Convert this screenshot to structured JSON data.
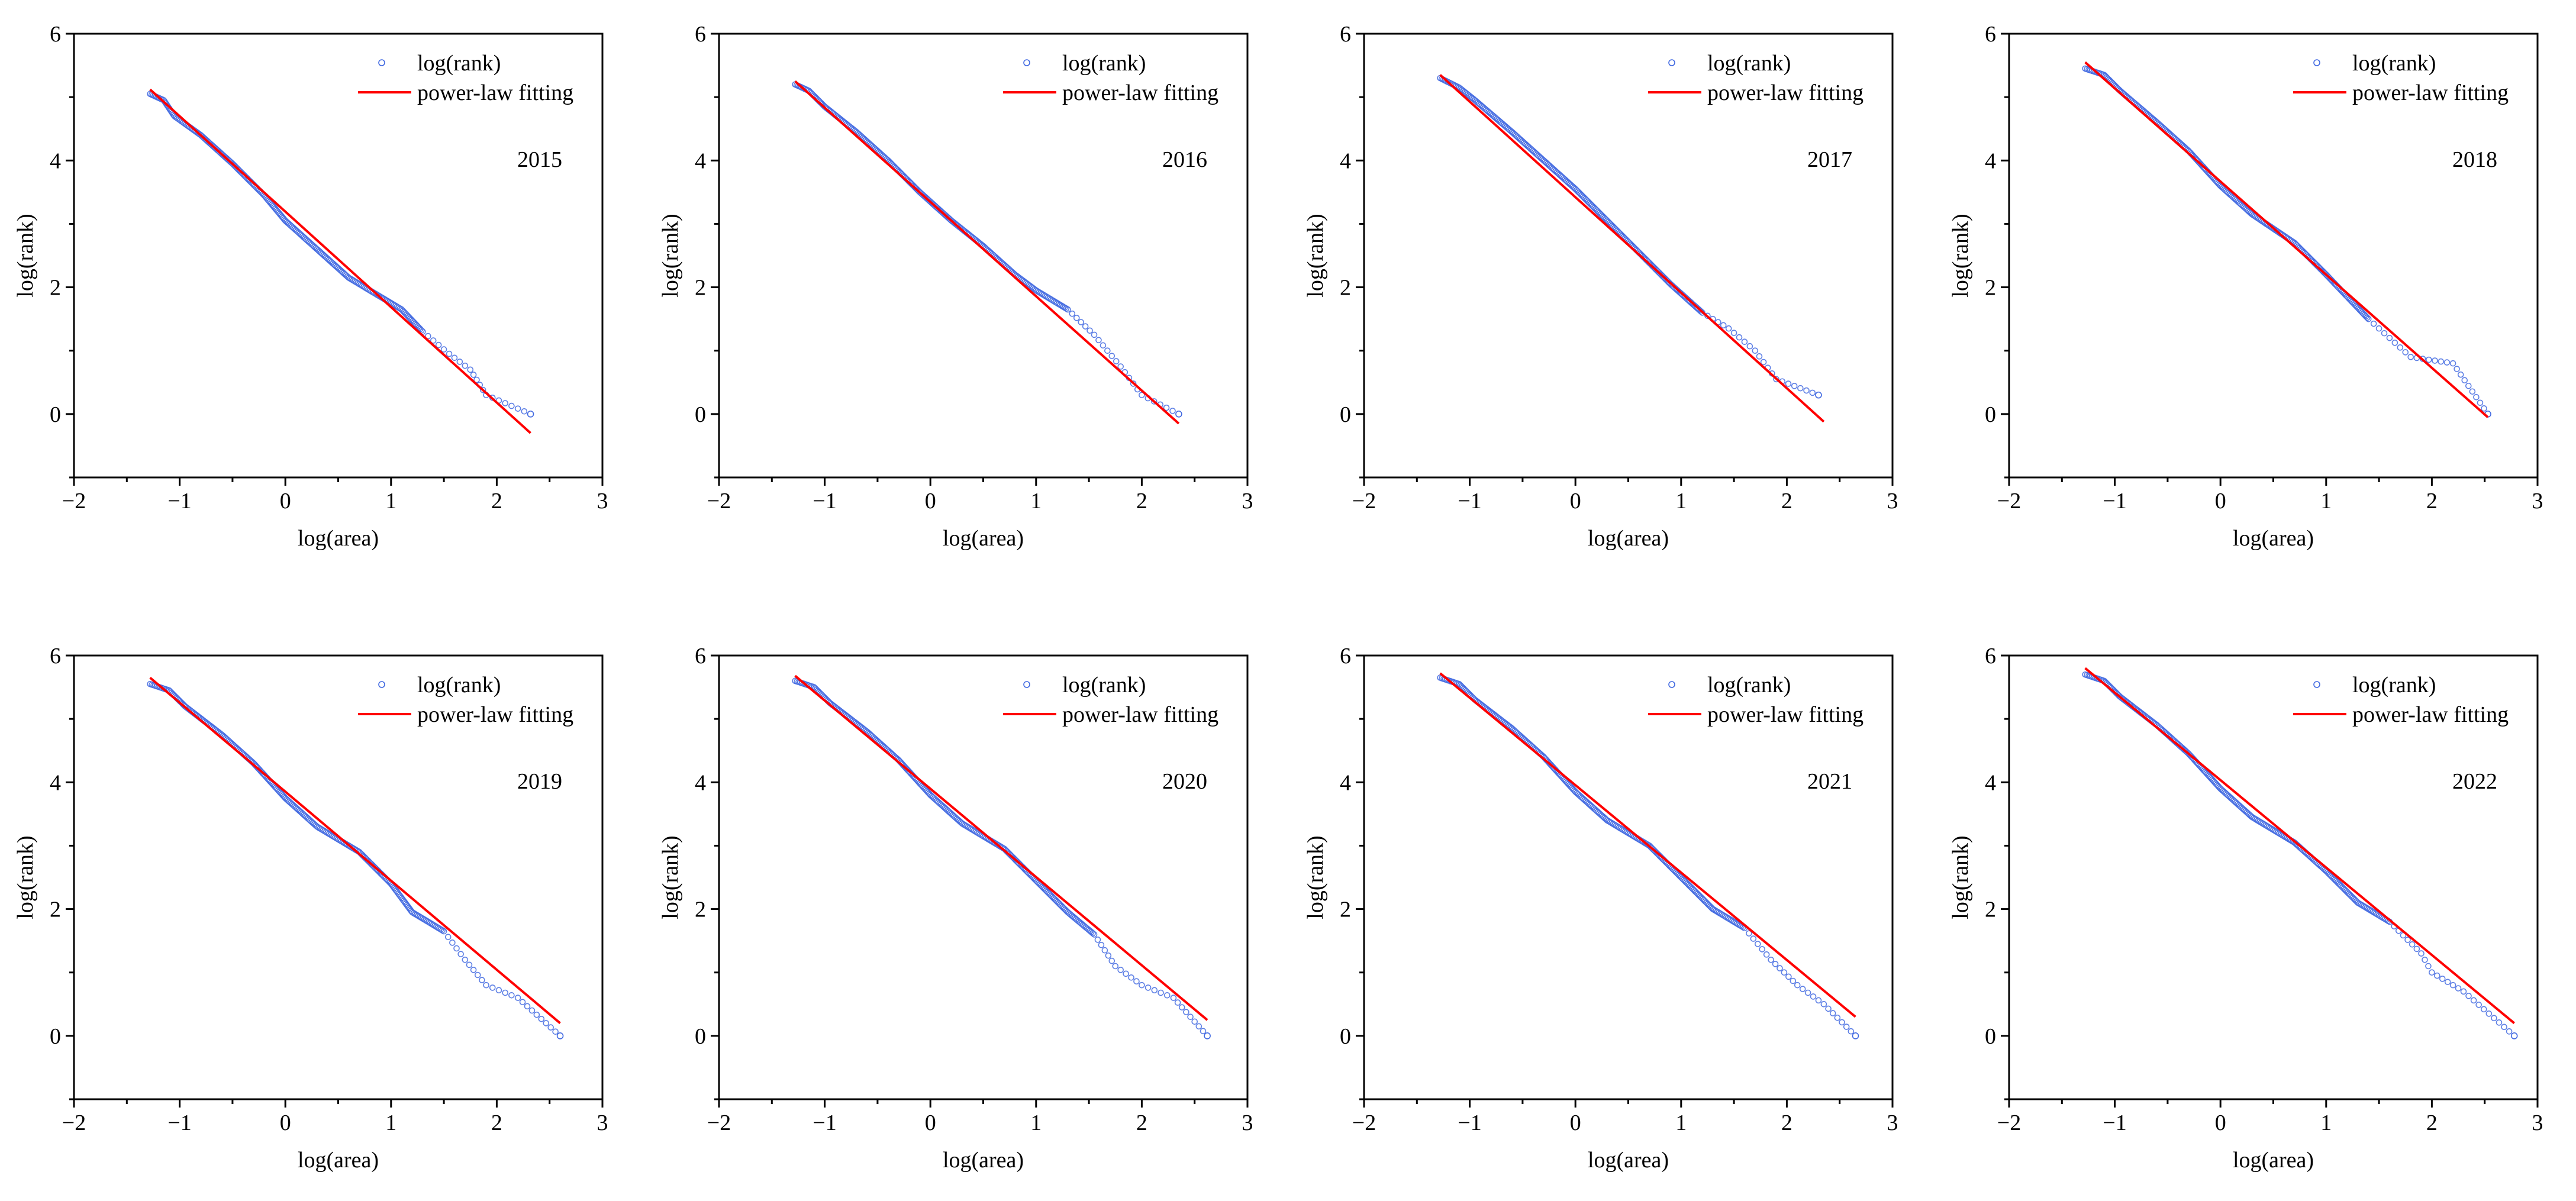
{
  "colors": {
    "data": "#4169E1",
    "fit": "#FF0000",
    "axis": "#000000"
  },
  "chart_data": [
    {
      "type": "scatter",
      "year_label": "2015",
      "xlabel": "log(area)",
      "ylabel": "log(rank)",
      "xlim": [
        -2,
        3
      ],
      "ylim": [
        -1,
        6
      ],
      "xticks": [
        "-2",
        "-1",
        "0",
        "1",
        "2",
        "3"
      ],
      "yticks": [
        "0",
        "2",
        "4",
        "6"
      ],
      "legend": {
        "placement": "top-right",
        "entries": [
          "log(rank)",
          "power-law fitting"
        ]
      },
      "series": [
        {
          "name": "log(rank)",
          "style": "hollow-circle",
          "points": [
            [
              -1.28,
              5.05
            ],
            [
              -1.15,
              4.95
            ],
            [
              -1.05,
              4.7
            ],
            [
              -0.8,
              4.4
            ],
            [
              -0.5,
              3.95
            ],
            [
              -0.2,
              3.45
            ],
            [
              0,
              3.05
            ],
            [
              0.3,
              2.6
            ],
            [
              0.6,
              2.15
            ],
            [
              0.9,
              1.85
            ],
            [
              1.1,
              1.65
            ],
            [
              1.3,
              1.3
            ],
            [
              1.55,
              0.95
            ],
            [
              1.75,
              0.7
            ],
            [
              1.9,
              0.3
            ],
            [
              2.32,
              0.0
            ]
          ]
        },
        {
          "name": "power-law fitting",
          "style": "line",
          "points": [
            [
              -1.28,
              5.12
            ],
            [
              2.32,
              -0.3
            ]
          ]
        }
      ]
    },
    {
      "type": "scatter",
      "year_label": "2016",
      "xlabel": "log(area)",
      "ylabel": "log(rank)",
      "xlim": [
        -2,
        3
      ],
      "ylim": [
        -1,
        6
      ],
      "xticks": [
        "-2",
        "-1",
        "0",
        "1",
        "2",
        "3"
      ],
      "yticks": [
        "0",
        "2",
        "4",
        "6"
      ],
      "legend": {
        "placement": "top-right",
        "entries": [
          "log(rank)",
          "power-law fitting"
        ]
      },
      "series": [
        {
          "name": "log(rank)",
          "style": "hollow-circle",
          "points": [
            [
              -1.28,
              5.2
            ],
            [
              -1.15,
              5.1
            ],
            [
              -1.0,
              4.85
            ],
            [
              -0.7,
              4.45
            ],
            [
              -0.4,
              4.0
            ],
            [
              -0.1,
              3.5
            ],
            [
              0.2,
              3.05
            ],
            [
              0.5,
              2.65
            ],
            [
              0.8,
              2.2
            ],
            [
              1.0,
              1.95
            ],
            [
              1.3,
              1.65
            ],
            [
              1.55,
              1.25
            ],
            [
              1.8,
              0.75
            ],
            [
              2.0,
              0.3
            ],
            [
              2.35,
              0.0
            ]
          ]
        },
        {
          "name": "power-law fitting",
          "style": "line",
          "points": [
            [
              -1.28,
              5.25
            ],
            [
              2.35,
              -0.15
            ]
          ]
        }
      ]
    },
    {
      "type": "scatter",
      "year_label": "2017",
      "xlabel": "log(area)",
      "ylabel": "log(rank)",
      "xlim": [
        -2,
        3
      ],
      "ylim": [
        -1,
        6
      ],
      "xticks": [
        "-2",
        "-1",
        "0",
        "1",
        "2",
        "3"
      ],
      "yticks": [
        "0",
        "2",
        "4",
        "6"
      ],
      "legend": {
        "placement": "top-right",
        "entries": [
          "log(rank)",
          "power-law fitting"
        ]
      },
      "series": [
        {
          "name": "log(rank)",
          "style": "hollow-circle",
          "points": [
            [
              -1.28,
              5.3
            ],
            [
              -1.1,
              5.15
            ],
            [
              -0.95,
              4.95
            ],
            [
              -0.6,
              4.45
            ],
            [
              -0.3,
              4.0
            ],
            [
              0,
              3.55
            ],
            [
              0.3,
              3.05
            ],
            [
              0.6,
              2.55
            ],
            [
              0.9,
              2.05
            ],
            [
              1.2,
              1.6
            ],
            [
              1.45,
              1.35
            ],
            [
              1.7,
              1.0
            ],
            [
              1.9,
              0.55
            ],
            [
              2.3,
              0.3
            ]
          ]
        },
        {
          "name": "power-law fitting",
          "style": "line",
          "points": [
            [
              -1.28,
              5.35
            ],
            [
              2.35,
              -0.12
            ]
          ]
        }
      ]
    },
    {
      "type": "scatter",
      "year_label": "2018",
      "xlabel": "log(area)",
      "ylabel": "log(rank)",
      "xlim": [
        -2,
        3
      ],
      "ylim": [
        -1,
        6
      ],
      "xticks": [
        "-2",
        "-1",
        "0",
        "1",
        "2",
        "3"
      ],
      "yticks": [
        "0",
        "2",
        "4",
        "6"
      ],
      "legend": {
        "placement": "top-right",
        "entries": [
          "log(rank)",
          "power-law fitting"
        ]
      },
      "series": [
        {
          "name": "log(rank)",
          "style": "hollow-circle",
          "points": [
            [
              -1.28,
              5.45
            ],
            [
              -1.1,
              5.35
            ],
            [
              -0.95,
              5.1
            ],
            [
              -0.6,
              4.6
            ],
            [
              -0.3,
              4.15
            ],
            [
              0,
              3.6
            ],
            [
              0.3,
              3.15
            ],
            [
              0.7,
              2.7
            ],
            [
              1.0,
              2.2
            ],
            [
              1.2,
              1.85
            ],
            [
              1.4,
              1.5
            ],
            [
              1.6,
              1.2
            ],
            [
              1.8,
              0.9
            ],
            [
              2.2,
              0.8
            ],
            [
              2.53,
              0.0
            ]
          ]
        },
        {
          "name": "power-law fitting",
          "style": "line",
          "points": [
            [
              -1.28,
              5.55
            ],
            [
              2.53,
              -0.05
            ]
          ]
        }
      ]
    },
    {
      "type": "scatter",
      "year_label": "2019",
      "xlabel": "log(area)",
      "ylabel": "log(rank)",
      "xlim": [
        -2,
        3
      ],
      "ylim": [
        -1,
        6
      ],
      "xticks": [
        "-2",
        "-1",
        "0",
        "1",
        "2",
        "3"
      ],
      "yticks": [
        "0",
        "2",
        "4",
        "6"
      ],
      "legend": {
        "placement": "top-right",
        "entries": [
          "log(rank)",
          "power-law fitting"
        ]
      },
      "series": [
        {
          "name": "log(rank)",
          "style": "hollow-circle",
          "points": [
            [
              -1.28,
              5.55
            ],
            [
              -1.1,
              5.45
            ],
            [
              -0.95,
              5.2
            ],
            [
              -0.6,
              4.75
            ],
            [
              -0.3,
              4.3
            ],
            [
              0,
              3.75
            ],
            [
              0.3,
              3.3
            ],
            [
              0.7,
              2.9
            ],
            [
              1.0,
              2.4
            ],
            [
              1.2,
              1.95
            ],
            [
              1.5,
              1.65
            ],
            [
              1.7,
              1.2
            ],
            [
              1.9,
              0.8
            ],
            [
              2.2,
              0.6
            ],
            [
              2.6,
              0.0
            ]
          ]
        },
        {
          "name": "power-law fitting",
          "style": "line",
          "points": [
            [
              -1.28,
              5.65
            ],
            [
              2.6,
              0.2
            ]
          ]
        }
      ]
    },
    {
      "type": "scatter",
      "year_label": "2020",
      "xlabel": "log(area)",
      "ylabel": "log(rank)",
      "xlim": [
        -2,
        3
      ],
      "ylim": [
        -1,
        6
      ],
      "xticks": [
        "-2",
        "-1",
        "0",
        "1",
        "2",
        "3"
      ],
      "yticks": [
        "0",
        "2",
        "4",
        "6"
      ],
      "legend": {
        "placement": "top-right",
        "entries": [
          "log(rank)",
          "power-law fitting"
        ]
      },
      "series": [
        {
          "name": "log(rank)",
          "style": "hollow-circle",
          "points": [
            [
              -1.28,
              5.6
            ],
            [
              -1.1,
              5.5
            ],
            [
              -0.95,
              5.25
            ],
            [
              -0.6,
              4.8
            ],
            [
              -0.3,
              4.35
            ],
            [
              0,
              3.8
            ],
            [
              0.3,
              3.35
            ],
            [
              0.7,
              2.95
            ],
            [
              1.0,
              2.45
            ],
            [
              1.3,
              1.95
            ],
            [
              1.55,
              1.6
            ],
            [
              1.75,
              1.1
            ],
            [
              2.0,
              0.8
            ],
            [
              2.3,
              0.6
            ],
            [
              2.62,
              0.0
            ]
          ]
        },
        {
          "name": "power-law fitting",
          "style": "line",
          "points": [
            [
              -1.28,
              5.68
            ],
            [
              2.62,
              0.25
            ]
          ]
        }
      ]
    },
    {
      "type": "scatter",
      "year_label": "2021",
      "xlabel": "log(area)",
      "ylabel": "log(rank)",
      "xlim": [
        -2,
        3
      ],
      "ylim": [
        -1,
        6
      ],
      "xticks": [
        "-2",
        "-1",
        "0",
        "1",
        "2",
        "3"
      ],
      "yticks": [
        "0",
        "2",
        "4",
        "6"
      ],
      "legend": {
        "placement": "top-right",
        "entries": [
          "log(rank)",
          "power-law fitting"
        ]
      },
      "series": [
        {
          "name": "log(rank)",
          "style": "hollow-circle",
          "points": [
            [
              -1.28,
              5.65
            ],
            [
              -1.1,
              5.55
            ],
            [
              -0.95,
              5.3
            ],
            [
              -0.6,
              4.85
            ],
            [
              -0.3,
              4.4
            ],
            [
              0,
              3.85
            ],
            [
              0.3,
              3.4
            ],
            [
              0.7,
              3.0
            ],
            [
              1.0,
              2.5
            ],
            [
              1.3,
              2.0
            ],
            [
              1.6,
              1.7
            ],
            [
              1.85,
              1.2
            ],
            [
              2.1,
              0.8
            ],
            [
              2.35,
              0.5
            ],
            [
              2.65,
              0.0
            ]
          ]
        },
        {
          "name": "power-law fitting",
          "style": "line",
          "points": [
            [
              -1.28,
              5.72
            ],
            [
              2.65,
              0.3
            ]
          ]
        }
      ]
    },
    {
      "type": "scatter",
      "year_label": "2022",
      "xlabel": "log(area)",
      "ylabel": "log(rank)",
      "xlim": [
        -2,
        3
      ],
      "ylim": [
        -1,
        6
      ],
      "xticks": [
        "-2",
        "-1",
        "0",
        "1",
        "2",
        "3"
      ],
      "yticks": [
        "0",
        "2",
        "4",
        "6"
      ],
      "legend": {
        "placement": "top-right",
        "entries": [
          "log(rank)",
          "power-law fitting"
        ]
      },
      "series": [
        {
          "name": "log(rank)",
          "style": "hollow-circle",
          "points": [
            [
              -1.28,
              5.7
            ],
            [
              -1.1,
              5.6
            ],
            [
              -0.95,
              5.35
            ],
            [
              -0.6,
              4.9
            ],
            [
              -0.3,
              4.45
            ],
            [
              0,
              3.9
            ],
            [
              0.3,
              3.45
            ],
            [
              0.7,
              3.05
            ],
            [
              1.0,
              2.6
            ],
            [
              1.3,
              2.1
            ],
            [
              1.6,
              1.8
            ],
            [
              1.9,
              1.3
            ],
            [
              2.0,
              1.0
            ],
            [
              2.3,
              0.7
            ],
            [
              2.78,
              0.0
            ]
          ]
        },
        {
          "name": "power-law fitting",
          "style": "line",
          "points": [
            [
              -1.28,
              5.8
            ],
            [
              2.78,
              0.2
            ]
          ]
        }
      ]
    }
  ]
}
